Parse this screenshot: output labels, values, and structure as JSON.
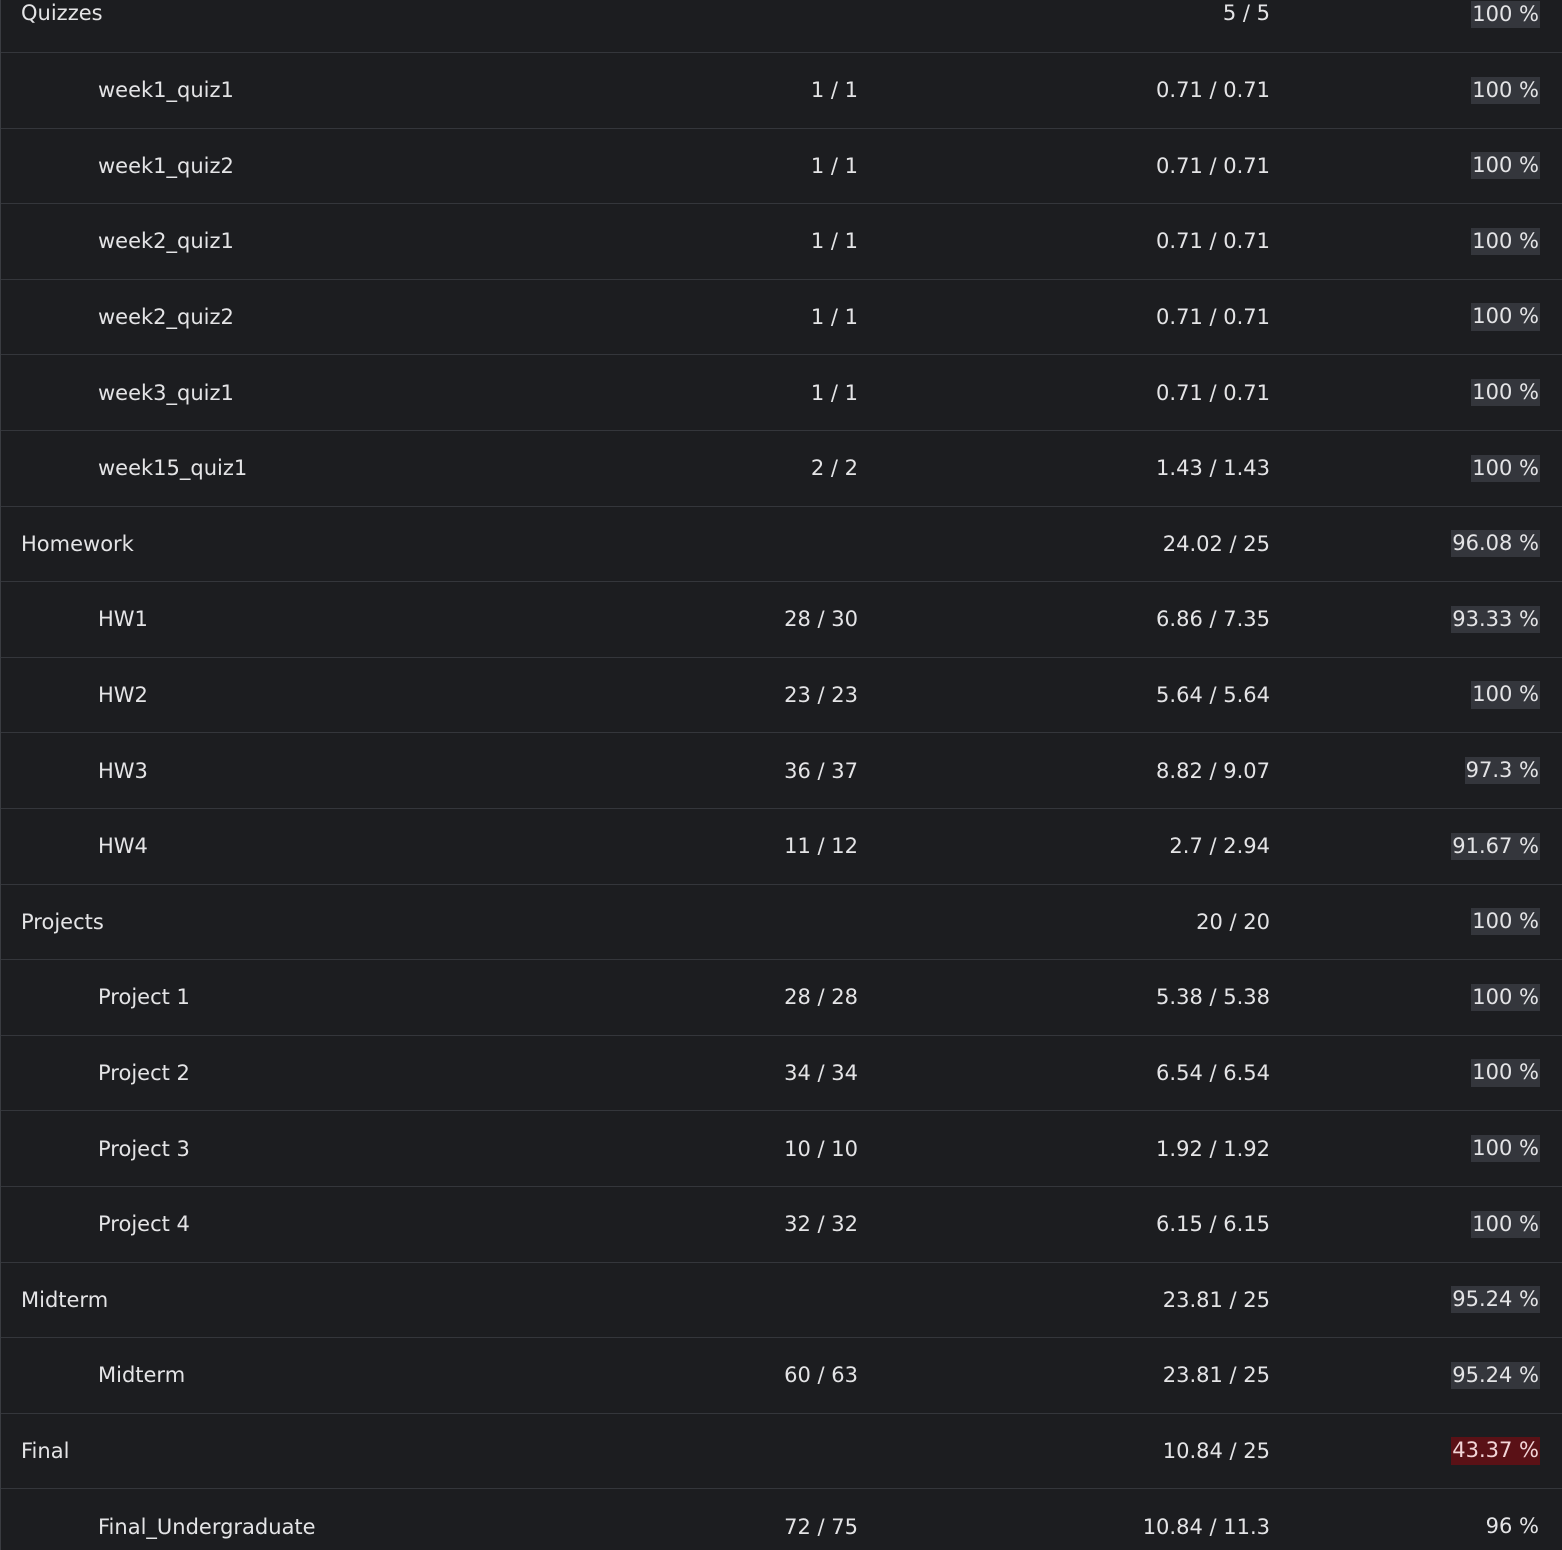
{
  "colors": {
    "background": "#1c1d20",
    "row_border": "#34363b",
    "text": "#e4e4e6",
    "percent_highlight": "#34363c",
    "percent_low_highlight": "#5a1116"
  },
  "rows": [
    {
      "name": "Quizzes",
      "score": "",
      "weighted": "5 / 5",
      "percent": "100 %",
      "level": "category",
      "percent_value": 100
    },
    {
      "name": "week1_quiz1",
      "score": "1 / 1",
      "weighted": "0.71 / 0.71",
      "percent": "100 %",
      "level": "item",
      "percent_value": 100
    },
    {
      "name": "week1_quiz2",
      "score": "1 / 1",
      "weighted": "0.71 / 0.71",
      "percent": "100 %",
      "level": "item",
      "percent_value": 100
    },
    {
      "name": "week2_quiz1",
      "score": "1 / 1",
      "weighted": "0.71 / 0.71",
      "percent": "100 %",
      "level": "item",
      "percent_value": 100
    },
    {
      "name": "week2_quiz2",
      "score": "1 / 1",
      "weighted": "0.71 / 0.71",
      "percent": "100 %",
      "level": "item",
      "percent_value": 100
    },
    {
      "name": "week3_quiz1",
      "score": "1 / 1",
      "weighted": "0.71 / 0.71",
      "percent": "100 %",
      "level": "item",
      "percent_value": 100
    },
    {
      "name": "week15_quiz1",
      "score": "2 / 2",
      "weighted": "1.43 / 1.43",
      "percent": "100 %",
      "level": "item",
      "percent_value": 100
    },
    {
      "name": "Homework",
      "score": "",
      "weighted": "24.02 / 25",
      "percent": "96.08 %",
      "level": "category",
      "percent_value": 96.08
    },
    {
      "name": "HW1",
      "score": "28 / 30",
      "weighted": "6.86 / 7.35",
      "percent": "93.33 %",
      "level": "item",
      "percent_value": 93.33
    },
    {
      "name": "HW2",
      "score": "23 / 23",
      "weighted": "5.64 / 5.64",
      "percent": "100 %",
      "level": "item",
      "percent_value": 100
    },
    {
      "name": "HW3",
      "score": "36 / 37",
      "weighted": "8.82 / 9.07",
      "percent": "97.3 %",
      "level": "item",
      "percent_value": 97.3
    },
    {
      "name": "HW4",
      "score": "11 / 12",
      "weighted": "2.7 / 2.94",
      "percent": "91.67 %",
      "level": "item",
      "percent_value": 91.67
    },
    {
      "name": "Projects",
      "score": "",
      "weighted": "20 / 20",
      "percent": "100 %",
      "level": "category",
      "percent_value": 100
    },
    {
      "name": "Project 1",
      "score": "28 / 28",
      "weighted": "5.38 / 5.38",
      "percent": "100 %",
      "level": "item",
      "percent_value": 100
    },
    {
      "name": "Project 2",
      "score": "34 / 34",
      "weighted": "6.54 / 6.54",
      "percent": "100 %",
      "level": "item",
      "percent_value": 100
    },
    {
      "name": "Project 3",
      "score": "10 / 10",
      "weighted": "1.92 / 1.92",
      "percent": "100 %",
      "level": "item",
      "percent_value": 100
    },
    {
      "name": "Project 4",
      "score": "32 / 32",
      "weighted": "6.15 / 6.15",
      "percent": "100 %",
      "level": "item",
      "percent_value": 100
    },
    {
      "name": "Midterm",
      "score": "",
      "weighted": "23.81 / 25",
      "percent": "95.24 %",
      "level": "category",
      "percent_value": 95.24
    },
    {
      "name": "Midterm",
      "score": "60 / 63",
      "weighted": "23.81 / 25",
      "percent": "95.24 %",
      "level": "item",
      "percent_value": 95.24
    },
    {
      "name": "Final",
      "score": "",
      "weighted": "10.84 / 25",
      "percent": "43.37 %",
      "level": "category",
      "percent_value": 43.37,
      "low": true
    },
    {
      "name": "Final_Undergraduate",
      "score": "72 / 75",
      "weighted": "10.84 / 11.3",
      "percent": "96 %",
      "level": "item",
      "percent_value": 96,
      "no_highlight": true
    }
  ]
}
